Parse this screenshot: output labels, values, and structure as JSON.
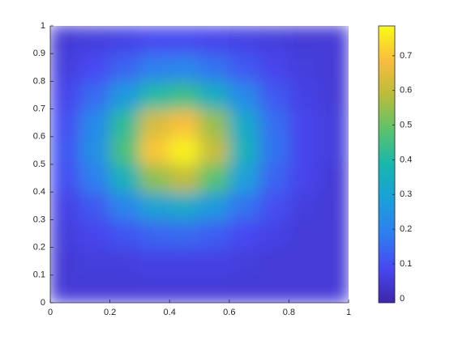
{
  "chart_data": {
    "type": "heatmap",
    "x": [
      0.05,
      0.15,
      0.25,
      0.35,
      0.45,
      0.55,
      0.65,
      0.75,
      0.85,
      0.95
    ],
    "y": [
      0.05,
      0.15,
      0.25,
      0.35,
      0.45,
      0.55,
      0.65,
      0.75,
      0.85,
      0.95
    ],
    "z": [
      [
        0.05,
        0.05,
        0.05,
        0.05,
        0.05,
        0.05,
        0.05,
        0.05,
        0.05,
        0.05
      ],
      [
        0.05,
        0.06,
        0.06,
        0.07,
        0.07,
        0.07,
        0.06,
        0.05,
        0.05,
        0.05
      ],
      [
        0.06,
        0.08,
        0.11,
        0.14,
        0.15,
        0.13,
        0.09,
        0.07,
        0.05,
        0.05
      ],
      [
        0.07,
        0.12,
        0.21,
        0.3,
        0.33,
        0.27,
        0.17,
        0.1,
        0.06,
        0.05
      ],
      [
        0.1,
        0.19,
        0.36,
        0.54,
        0.6,
        0.48,
        0.29,
        0.14,
        0.08,
        0.05
      ],
      [
        0.11,
        0.24,
        0.46,
        0.7,
        0.77,
        0.61,
        0.36,
        0.17,
        0.08,
        0.06
      ],
      [
        0.1,
        0.22,
        0.42,
        0.63,
        0.69,
        0.55,
        0.33,
        0.16,
        0.08,
        0.06
      ],
      [
        0.08,
        0.15,
        0.27,
        0.4,
        0.44,
        0.35,
        0.22,
        0.12,
        0.07,
        0.05
      ],
      [
        0.06,
        0.09,
        0.14,
        0.19,
        0.21,
        0.17,
        0.12,
        0.08,
        0.06,
        0.05
      ],
      [
        0.05,
        0.06,
        0.07,
        0.09,
        0.09,
        0.08,
        0.07,
        0.06,
        0.05,
        0.05
      ]
    ],
    "xlim": [
      0,
      1
    ],
    "xticks": [
      0,
      0.2,
      0.4,
      0.6,
      0.8,
      1
    ],
    "ylim": [
      0,
      1
    ],
    "yticks": [
      0,
      0.1,
      0.2,
      0.3,
      0.4,
      0.5,
      0.6,
      0.7,
      0.8,
      0.9,
      1
    ],
    "clim": [
      -0.012,
      0.786
    ],
    "cticks": [
      0,
      0.1,
      0.2,
      0.3,
      0.4,
      0.5,
      0.6,
      0.7
    ],
    "colormap": [
      "#3e26a8",
      "#4748f2",
      "#2e7ff0",
      "#1aa0da",
      "#17b7ad",
      "#5bc36c",
      "#b9bd3a",
      "#f9bd3e",
      "#f9fb15"
    ]
  }
}
